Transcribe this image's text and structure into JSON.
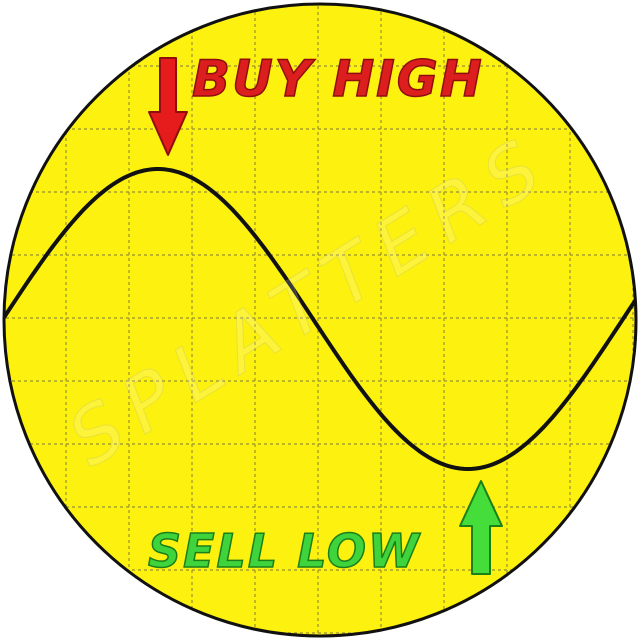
{
  "labels": {
    "top_caption": "BUY HIGH",
    "bottom_caption": "SELL LOW"
  },
  "watermark": "SPLATTERS",
  "colors": {
    "background": "#ffffff",
    "disc_fill": "#fcf10f",
    "grid_line": "#a89f2c",
    "curve": "#111111",
    "buy_arrow": "#e61c1c",
    "buy_text": "#dd1e1e",
    "sell_arrow": "#44dd3a",
    "sell_text": "#3fd43c"
  },
  "icons": {
    "top": "arrow-down-icon",
    "bottom": "arrow-up-icon"
  }
}
